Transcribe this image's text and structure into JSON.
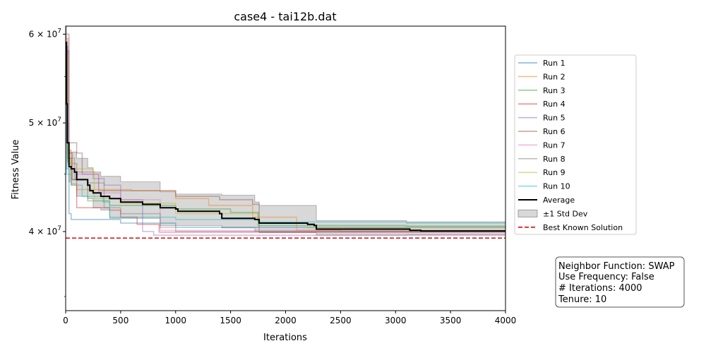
{
  "chart_data": {
    "type": "line",
    "title": "case4 - tai12b.dat",
    "xlabel": "Iterations",
    "ylabel": "Fitness Value",
    "xlim": [
      0,
      4000
    ],
    "ylim": [
      34000000,
      61000000
    ],
    "yscale": "log",
    "grid": false,
    "legend_position": "right",
    "xticks": [
      0,
      500,
      1000,
      1500,
      2000,
      2500,
      3000,
      3500,
      4000
    ],
    "xtick_labels": [
      "0",
      "500",
      "1000",
      "1500",
      "2000",
      "2500",
      "3000",
      "3500",
      "4000"
    ],
    "yticks": [
      {
        "value": 40000000,
        "mantissa": "4",
        "exponent": "7"
      },
      {
        "value": 50000000,
        "mantissa": "5",
        "exponent": "7"
      },
      {
        "value": 60000000,
        "mantissa": "6",
        "exponent": "7"
      }
    ],
    "series": [
      {
        "name": "Run 1",
        "color": "#1f77b4",
        "points": [
          [
            0,
            58000000
          ],
          [
            10,
            45500000
          ],
          [
            30,
            41500000
          ],
          [
            50,
            41000000
          ],
          [
            500,
            40700000
          ],
          [
            1000,
            40350000
          ],
          [
            1250,
            40350000
          ],
          [
            3100,
            40350000
          ],
          [
            4000,
            40350000
          ]
        ]
      },
      {
        "name": "Run 2",
        "color": "#ff7f0e",
        "points": [
          [
            0,
            59500000
          ],
          [
            15,
            47000000
          ],
          [
            50,
            44000000
          ],
          [
            100,
            43600000
          ],
          [
            600,
            43500000
          ],
          [
            1000,
            42800000
          ],
          [
            1300,
            42200000
          ],
          [
            1700,
            41200000
          ],
          [
            2100,
            40100000
          ],
          [
            2500,
            40000000
          ],
          [
            4000,
            40000000
          ]
        ]
      },
      {
        "name": "Run 3",
        "color": "#2ca02c",
        "points": [
          [
            0,
            58500000
          ],
          [
            20,
            46500000
          ],
          [
            50,
            44500000
          ],
          [
            200,
            42600000
          ],
          [
            400,
            42200000
          ],
          [
            1000,
            41900000
          ],
          [
            1500,
            41600000
          ],
          [
            1750,
            40500000
          ],
          [
            3100,
            40450000
          ],
          [
            4000,
            40450000
          ]
        ]
      },
      {
        "name": "Run 4",
        "color": "#d62728",
        "points": [
          [
            0,
            58000000
          ],
          [
            20,
            47000000
          ],
          [
            60,
            44500000
          ],
          [
            100,
            42000000
          ],
          [
            400,
            41800000
          ],
          [
            500,
            41200000
          ],
          [
            650,
            40600000
          ],
          [
            850,
            39950000
          ],
          [
            3200,
            39950000
          ],
          [
            4000,
            39950000
          ]
        ]
      },
      {
        "name": "Run 5",
        "color": "#9467bd",
        "points": [
          [
            0,
            58000000
          ],
          [
            30,
            46000000
          ],
          [
            100,
            45200000
          ],
          [
            250,
            44600000
          ],
          [
            350,
            44000000
          ],
          [
            500,
            42700000
          ],
          [
            700,
            40000000
          ],
          [
            800,
            39700000
          ],
          [
            4000,
            39700000
          ]
        ]
      },
      {
        "name": "Run 6",
        "color": "#8c564b",
        "points": [
          [
            0,
            60000000
          ],
          [
            30,
            48000000
          ],
          [
            100,
            47000000
          ],
          [
            150,
            45000000
          ],
          [
            300,
            43500000
          ],
          [
            1000,
            43000000
          ],
          [
            1400,
            42700000
          ],
          [
            1700,
            42300000
          ],
          [
            1760,
            40000000
          ],
          [
            4000,
            40000000
          ]
        ]
      },
      {
        "name": "Run 7",
        "color": "#e377c2",
        "points": [
          [
            0,
            59500000
          ],
          [
            25,
            46000000
          ],
          [
            100,
            45000000
          ],
          [
            300,
            43300000
          ],
          [
            500,
            42700000
          ],
          [
            860,
            40100000
          ],
          [
            4000,
            40100000
          ]
        ]
      },
      {
        "name": "Run 8",
        "color": "#7f7f7f",
        "points": [
          [
            0,
            58500000
          ],
          [
            15,
            46500000
          ],
          [
            80,
            44500000
          ],
          [
            200,
            44200000
          ],
          [
            350,
            42000000
          ],
          [
            500,
            41500000
          ],
          [
            860,
            40350000
          ],
          [
            1000,
            40000000
          ],
          [
            4000,
            39850000
          ]
        ]
      },
      {
        "name": "Run 9",
        "color": "#bcbd22",
        "points": [
          [
            0,
            57500000
          ],
          [
            20,
            46000000
          ],
          [
            100,
            45500000
          ],
          [
            250,
            45300000
          ],
          [
            260,
            42800000
          ],
          [
            500,
            42400000
          ],
          [
            1000,
            41500000
          ],
          [
            1750,
            40700000
          ],
          [
            2200,
            40300000
          ],
          [
            4000,
            40300000
          ]
        ]
      },
      {
        "name": "Run 10",
        "color": "#17becf",
        "points": [
          [
            0,
            57500000
          ],
          [
            10,
            45000000
          ],
          [
            50,
            44000000
          ],
          [
            150,
            43000000
          ],
          [
            340,
            42500000
          ],
          [
            400,
            41200000
          ],
          [
            1000,
            41000000
          ],
          [
            1750,
            40800000
          ],
          [
            3100,
            40700000
          ],
          [
            4000,
            40600000
          ]
        ]
      }
    ],
    "average": {
      "name": "Average",
      "color": "#000000",
      "points": [
        [
          0,
          59000000
        ],
        [
          8,
          52000000
        ],
        [
          15,
          48000000
        ],
        [
          30,
          45700000
        ],
        [
          50,
          45500000
        ],
        [
          80,
          45200000
        ],
        [
          100,
          44500000
        ],
        [
          200,
          44000000
        ],
        [
          220,
          43500000
        ],
        [
          250,
          43300000
        ],
        [
          320,
          43000000
        ],
        [
          400,
          42800000
        ],
        [
          500,
          42500000
        ],
        [
          700,
          42300000
        ],
        [
          860,
          42000000
        ],
        [
          1000,
          41900000
        ],
        [
          1020,
          41700000
        ],
        [
          1400,
          41500000
        ],
        [
          1420,
          41100000
        ],
        [
          1720,
          41000000
        ],
        [
          1760,
          40700000
        ],
        [
          2200,
          40600000
        ],
        [
          2260,
          40500000
        ],
        [
          2280,
          40200000
        ],
        [
          3100,
          40200000
        ],
        [
          3130,
          40100000
        ],
        [
          3230,
          40050000
        ],
        [
          4000,
          40000000
        ]
      ]
    },
    "std_band": {
      "name": "±1 Std Dev",
      "color": "#a9a9a9",
      "upper": [
        [
          0,
          61000000
        ],
        [
          8,
          56000000
        ],
        [
          15,
          50000000
        ],
        [
          30,
          47300000
        ],
        [
          50,
          47100000
        ],
        [
          100,
          46500000
        ],
        [
          200,
          45600000
        ],
        [
          250,
          45200000
        ],
        [
          320,
          44800000
        ],
        [
          400,
          44800000
        ],
        [
          500,
          44300000
        ],
        [
          860,
          43400000
        ],
        [
          1000,
          43200000
        ],
        [
          1420,
          43100000
        ],
        [
          1720,
          42500000
        ],
        [
          1760,
          42200000
        ],
        [
          2200,
          42200000
        ],
        [
          2280,
          40900000
        ],
        [
          3100,
          40800000
        ],
        [
          4000,
          40650000
        ]
      ],
      "lower": [
        [
          0,
          57000000
        ],
        [
          8,
          48000000
        ],
        [
          15,
          46200000
        ],
        [
          30,
          44300000
        ],
        [
          50,
          44100000
        ],
        [
          100,
          43000000
        ],
        [
          200,
          42800000
        ],
        [
          250,
          42000000
        ],
        [
          320,
          41800000
        ],
        [
          400,
          41100000
        ],
        [
          500,
          41100000
        ],
        [
          860,
          40500000
        ],
        [
          1000,
          40500000
        ],
        [
          1420,
          40300000
        ],
        [
          1720,
          40000000
        ],
        [
          1760,
          39900000
        ],
        [
          2200,
          39900000
        ],
        [
          2280,
          39700000
        ],
        [
          3100,
          39750000
        ],
        [
          4000,
          39650000
        ]
      ]
    },
    "best_known": {
      "name": "Best Known Solution",
      "color": "#d62728",
      "value": 39464925
    }
  },
  "info_box": {
    "line1": "Neighbor Function: SWAP",
    "line2": "Use Frequency: False",
    "line3": "# Iterations: 4000",
    "line4": "Tenure: 10"
  }
}
